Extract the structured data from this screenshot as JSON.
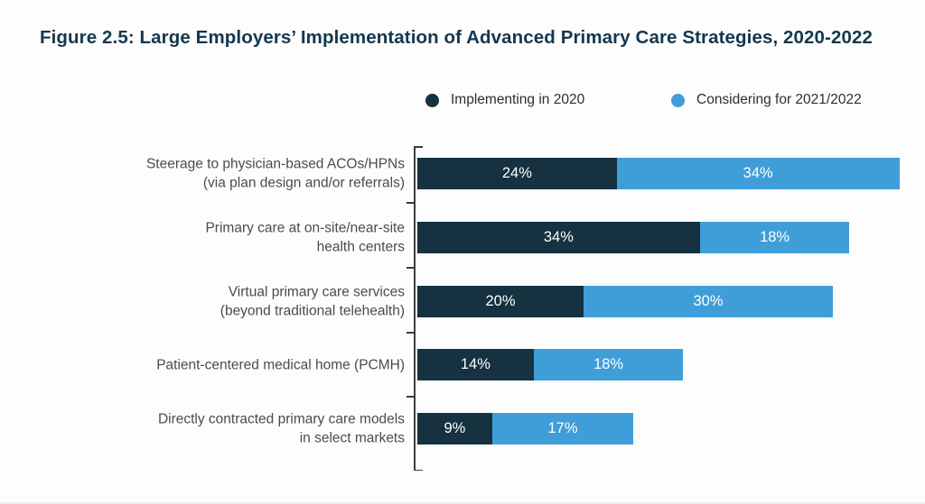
{
  "figure": {
    "title": "Figure 2.5: Large Employers’ Implementation of Advanced Primary Care Strategies, 2020-2022"
  },
  "legend": {
    "items": [
      {
        "label": "Implementing in 2020",
        "color": "#16313F"
      },
      {
        "label": "Considering for 2021/2022",
        "color": "#3F9ED8"
      }
    ]
  },
  "chart_data": {
    "type": "bar",
    "orientation": "horizontal",
    "stacked": true,
    "title": "Figure 2.5: Large Employers’ Implementation of Advanced Primary Care Strategies, 2020-2022",
    "xlabel": "",
    "ylabel": "",
    "value_unit": "%",
    "xlim": [
      0,
      60
    ],
    "grid": false,
    "legend_position": "top",
    "categories": [
      "Steerage to physician-based ACOs/HPNs (via plan design and/or referrals)",
      "Primary care at on-site/near-site health centers",
      "Virtual primary care services (beyond traditional telehealth)",
      "Patient-centered medical home (PCMH)",
      "Directly contracted primary care models in select markets"
    ],
    "category_label_lines": [
      [
        "Steerage to physician-based ACOs/HPNs",
        "(via plan design and/or referrals)"
      ],
      [
        "Primary care at on-site/near-site",
        "health centers"
      ],
      [
        "Virtual primary care services",
        "(beyond traditional telehealth)"
      ],
      [
        "Patient-centered medical home (PCMH)"
      ],
      [
        "Directly contracted primary care models",
        "in select markets"
      ]
    ],
    "series": [
      {
        "name": "Implementing in 2020",
        "color": "#16313F",
        "values": [
          24,
          34,
          20,
          14,
          9
        ]
      },
      {
        "name": "Considering for 2021/2022",
        "color": "#3F9ED8",
        "values": [
          34,
          18,
          30,
          18,
          17
        ]
      }
    ],
    "data_labels": [
      [
        "24%",
        "34%"
      ],
      [
        "34%",
        "18%"
      ],
      [
        "20%",
        "30%"
      ],
      [
        "14%",
        "18%"
      ],
      [
        "9%",
        "17%"
      ]
    ]
  },
  "colors": {
    "title_text": "#14374F",
    "category_text": "#4B4B4B",
    "axis_line": "#3D3D3D",
    "bar_value_text": "#FFFFFF",
    "background": "#FDFDFD"
  }
}
